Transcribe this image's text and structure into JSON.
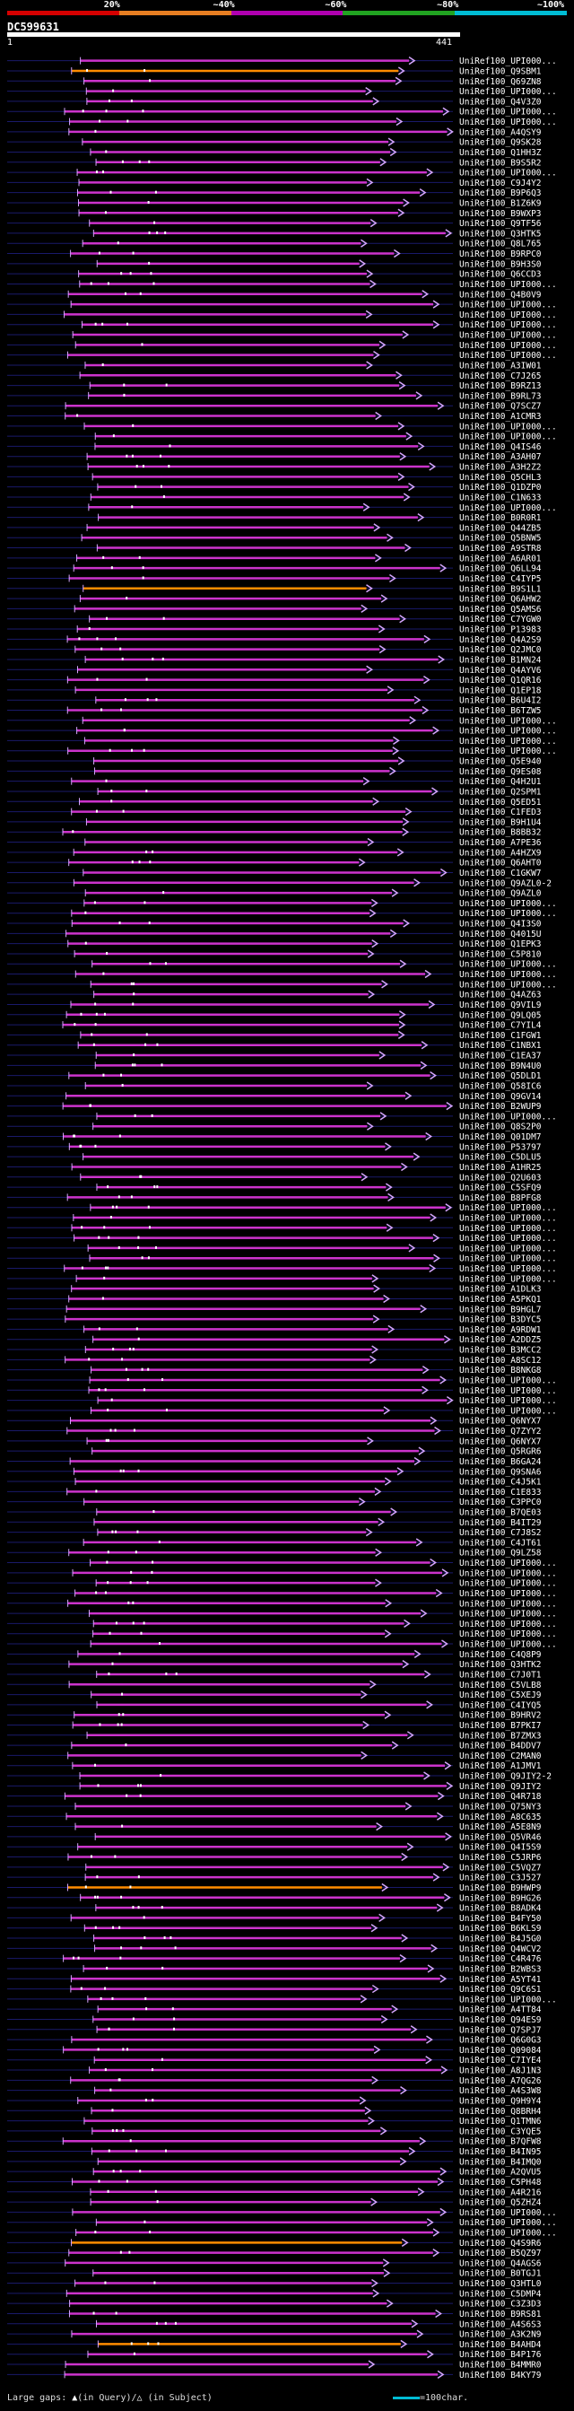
{
  "legend": {
    "segments": [
      {
        "label": "20%",
        "color": "#d50000"
      },
      {
        "label": "~40%",
        "color": "#e67e22"
      },
      {
        "label": "~60%",
        "color": "#b000b0"
      },
      {
        "label": "~80%",
        "color": "#21a321"
      },
      {
        "label": "~100%",
        "color": "#00bcd4"
      }
    ]
  },
  "query": {
    "id": "DC599631",
    "start": "1",
    "end": "441"
  },
  "colors": {
    "hit": "#cc33cc",
    "hit_high": "#ff8c00",
    "gap": "#d6a6ff"
  },
  "footer": {
    "large_gaps_label": "Large gaps: ",
    "in_query": "(in Query)/",
    "in_subject": " (in Subject)",
    "scale_label": "=100char."
  },
  "hits": [
    "UniRef100_UPI000...",
    "UniRef100_Q9SBM1",
    "UniRef100_Q69ZN8",
    "UniRef100_UPI000...",
    "UniRef100_Q4V3Z0",
    "UniRef100_UPI000...",
    "UniRef100_UPI000...",
    "UniRef100_A4QSY9",
    "UniRef100_Q9SK28",
    "UniRef100_Q1HH3Z",
    "UniRef100_B9S5R2",
    "UniRef100_UPI000...",
    "UniRef100_C9J4Y2",
    "UniRef100_B9P6Q3",
    "UniRef100_B1Z6K9",
    "UniRef100_B9WXP3",
    "UniRef100_Q9TF56",
    "UniRef100_Q3HTK5",
    "UniRef100_Q8L765",
    "UniRef100_B9RPC0",
    "UniRef100_B9H3S0",
    "UniRef100_Q6CCD3",
    "UniRef100_UPI000...",
    "UniRef100_Q4B0V9",
    "UniRef100_UPI000...",
    "UniRef100_UPI000...",
    "UniRef100_UPI000...",
    "UniRef100_UPI000...",
    "UniRef100_UPI000...",
    "UniRef100_UPI000...",
    "UniRef100_A3IW01",
    "UniRef100_C7J265",
    "UniRef100_B9RZ13",
    "UniRef100_B9RL73",
    "UniRef100_Q7SCZ7",
    "UniRef100_A1CMR3",
    "UniRef100_UPI000...",
    "UniRef100_UPI000...",
    "UniRef100_Q4IS46",
    "UniRef100_A3AH07",
    "UniRef100_A3H2Z2",
    "UniRef100_Q5CHL3",
    "UniRef100_Q1DZP0",
    "UniRef100_C1N633",
    "UniRef100_UPI000...",
    "UniRef100_B0R0R1",
    "UniRef100_Q44ZB5",
    "UniRef100_Q5BNW5",
    "UniRef100_A9STR8",
    "UniRef100_A6AR01",
    "UniRef100_Q6LL94",
    "UniRef100_C4IYP5",
    "UniRef100_B9S1L1",
    "UniRef100_Q6AHW2",
    "UniRef100_Q5AMS6",
    "UniRef100_C7YGW0",
    "UniRef100_P13983",
    "UniRef100_Q4A2S9",
    "UniRef100_Q2JMC0",
    "UniRef100_B1MN24",
    "UniRef100_Q4AYV6",
    "UniRef100_Q1QR16",
    "UniRef100_Q1EP18",
    "UniRef100_B6U4I2",
    "UniRef100_B6TZW5",
    "UniRef100_UPI000...",
    "UniRef100_UPI000...",
    "UniRef100_UPI000...",
    "UniRef100_UPI000...",
    "UniRef100_Q5E940",
    "UniRef100_Q9ES08",
    "UniRef100_Q4H2U1",
    "UniRef100_Q2SPM1",
    "UniRef100_Q5ED51",
    "UniRef100_C1FED3",
    "UniRef100_B9H1U4",
    "UniRef100_B8BB32",
    "UniRef100_A7PE36",
    "UniRef100_A4HZX9",
    "UniRef100_Q6AHT0",
    "UniRef100_C1GKW7",
    "UniRef100_Q9AZL0-2",
    "UniRef100_Q9AZL0",
    "UniRef100_UPI000...",
    "UniRef100_UPI000...",
    "UniRef100_Q4I3S0",
    "UniRef100_Q4015U",
    "UniRef100_Q1EPK3",
    "UniRef100_C5P810",
    "UniRef100_UPI000...",
    "UniRef100_UPI000...",
    "UniRef100_UPI000...",
    "UniRef100_Q4AZ63",
    "UniRef100_Q9VIL9",
    "UniRef100_Q9LQ05",
    "UniRef100_C7YIL4",
    "UniRef100_C1FGW1",
    "UniRef100_C1NBX1",
    "UniRef100_C1EA37",
    "UniRef100_B9N4U0",
    "UniRef100_Q5DLD1",
    "UniRef100_Q58IC6",
    "UniRef100_Q9GV14",
    "UniRef100_B2WUP9",
    "UniRef100_UPI000...",
    "UniRef100_Q8S2P0",
    "UniRef100_Q01DM7",
    "UniRef100_P53797",
    "UniRef100_C5DLU5",
    "UniRef100_A1HR25",
    "UniRef100_Q2U603",
    "UniRef100_C5SFQ9",
    "UniRef100_B8PFG8",
    "UniRef100_UPI000...",
    "UniRef100_UPI000...",
    "UniRef100_UPI000...",
    "UniRef100_UPI000...",
    "UniRef100_UPI000...",
    "UniRef100_UPI000...",
    "UniRef100_UPI000...",
    "UniRef100_UPI000...",
    "UniRef100_A1DLK3",
    "UniRef100_A5PKQ1",
    "UniRef100_B9HGL7",
    "UniRef100_B3DYC5",
    "UniRef100_A9RDW1",
    "UniRef100_A2DDZ5",
    "UniRef100_B3MCC2",
    "UniRef100_A8SC12",
    "UniRef100_B8NKG8",
    "UniRef100_UPI000...",
    "UniRef100_UPI000...",
    "UniRef100_UPI000...",
    "UniRef100_UPI000...",
    "UniRef100_Q6NYX7",
    "UniRef100_Q7ZYY2",
    "UniRef100_Q6NYX7",
    "UniRef100_Q5RGR6",
    "UniRef100_B6GA24",
    "UniRef100_Q9SNA6",
    "UniRef100_C4J5K1",
    "UniRef100_C1E833",
    "UniRef100_C3PPC0",
    "UniRef100_B7QE03",
    "UniRef100_B4IT29",
    "UniRef100_C7J8S2",
    "UniRef100_C4JT61",
    "UniRef100_Q9LZ58",
    "UniRef100_UPI000...",
    "UniRef100_UPI000...",
    "UniRef100_UPI000...",
    "UniRef100_UPI000...",
    "UniRef100_UPI000...",
    "UniRef100_UPI000...",
    "UniRef100_UPI000...",
    "UniRef100_UPI000...",
    "UniRef100_UPI000...",
    "UniRef100_C4Q8P9",
    "UniRef100_Q3HTK2",
    "UniRef100_C7J0T1",
    "UniRef100_C5VLB8",
    "UniRef100_C5XEJ9",
    "UniRef100_C4IYQ5",
    "UniRef100_B9HRV2",
    "UniRef100_B7PKI7",
    "UniRef100_B7ZMX3",
    "UniRef100_B4DDV7",
    "UniRef100_C2MAN0",
    "UniRef100_A1JMV1",
    "UniRef100_Q9JIY2-2",
    "UniRef100_Q9JIY2",
    "UniRef100_Q4R718",
    "UniRef100_Q75NY3",
    "UniRef100_A8C635",
    "UniRef100_A5E8N9",
    "UniRef100_Q5VR46",
    "UniRef100_Q4I5S9",
    "UniRef100_C5JRP6",
    "UniRef100_C5VQZ7",
    "UniRef100_C3J527",
    "UniRef100_B9HWP9",
    "UniRef100_B9HG26",
    "UniRef100_B8ADK4",
    "UniRef100_B4FY50",
    "UniRef100_B6KLS9",
    "UniRef100_B4J5G0",
    "UniRef100_Q4WCV2",
    "UniRef100_C4R476",
    "UniRef100_B2WBS3",
    "UniRef100_A5YT41",
    "UniRef100_Q9C6S1",
    "UniRef100_UPI000...",
    "UniRef100_A4TT84",
    "UniRef100_Q94ES9",
    "UniRef100_Q7SPJ7",
    "UniRef100_Q6G0G3",
    "UniRef100_Q09084",
    "UniRef100_C7IYE4",
    "UniRef100_A8J1N3",
    "UniRef100_A7QG26",
    "UniRef100_A4S3W8",
    "UniRef100_Q9H9Y4",
    "UniRef100_Q8BRH4",
    "UniRef100_Q1TMN6",
    "UniRef100_C3YQE5",
    "UniRef100_B7QFW8",
    "UniRef100_B4IN95",
    "UniRef100_B4IMQ0",
    "UniRef100_A2QVU5",
    "UniRef100_C5PH48",
    "UniRef100_A4R216",
    "UniRef100_Q5ZHZ4",
    "UniRef100_UPI000...",
    "UniRef100_UPI000...",
    "UniRef100_UPI000...",
    "UniRef100_Q4S9R6",
    "UniRef100_B5QZ97",
    "UniRef100_Q4AGS6",
    "UniRef100_B0TGJ1",
    "UniRef100_Q3HTL0",
    "UniRef100_C5DMP4",
    "UniRef100_C3Z3D3",
    "UniRef100_B9RS81",
    "UniRef100_A4S6S3",
    "UniRef100_A3K2N9",
    "UniRef100_B4AHD4",
    "UniRef100_B4P176",
    "UniRef100_B4MMR0",
    "UniRef100_B4KY79"
  ]
}
